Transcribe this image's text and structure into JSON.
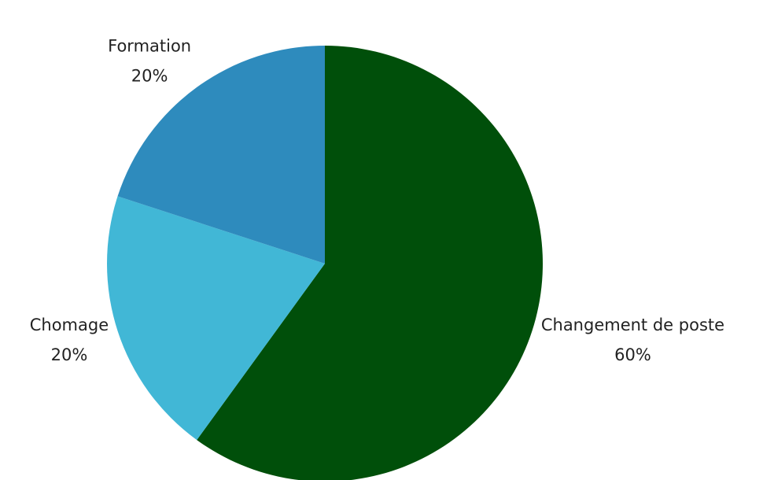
{
  "chart_data": {
    "type": "pie",
    "categories": [
      "Changement de poste",
      "Chomage",
      "Formation"
    ],
    "values": [
      60,
      20,
      20
    ],
    "value_labels": [
      "60%",
      "20%",
      "20%"
    ],
    "colors": [
      "#004f0a",
      "#41b7d6",
      "#2e8bbd"
    ]
  }
}
